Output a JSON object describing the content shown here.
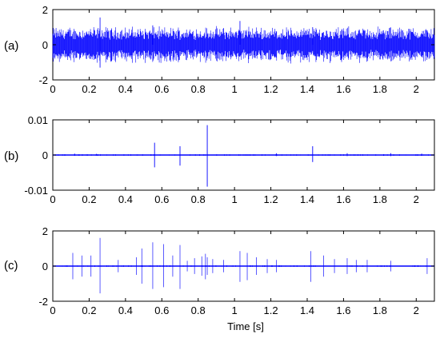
{
  "chart_data": [
    {
      "type": "line",
      "panel_label": "(a)",
      "xlim": [
        0,
        2.1
      ],
      "ylim": [
        -2,
        2
      ],
      "x_ticks": [
        0,
        0.2,
        0.4,
        0.6,
        0.8,
        1,
        1.2,
        1.4,
        1.6,
        1.8,
        2
      ],
      "x_tick_labels": [
        "0",
        "0.2",
        "0.4",
        "0.6",
        "0.8",
        "1",
        "1.2",
        "1.4",
        "1.6",
        "1.8",
        "2"
      ],
      "y_ticks": [
        -2,
        0,
        2
      ],
      "y_tick_labels": [
        "-2",
        "0",
        "2"
      ],
      "series_color": "#0000ff",
      "signal": "dense vibration signal, envelope about ±1, occasional peaks",
      "peaks": [
        [
          0.26,
          1.55
        ],
        [
          0.26,
          -1.3
        ],
        [
          0.55,
          1.1
        ],
        [
          1.03,
          1.35
        ],
        [
          1.43,
          1.0
        ]
      ]
    },
    {
      "type": "line",
      "panel_label": "(b)",
      "xlim": [
        0,
        2.1
      ],
      "ylim": [
        -0.01,
        0.01
      ],
      "x_ticks": [
        0,
        0.2,
        0.4,
        0.6,
        0.8,
        1,
        1.2,
        1.4,
        1.6,
        1.8,
        2
      ],
      "x_tick_labels": [
        "0",
        "0.2",
        "0.4",
        "0.6",
        "0.8",
        "1",
        "1.2",
        "1.4",
        "1.6",
        "1.8",
        "2"
      ],
      "y_ticks": [
        -0.01,
        0,
        0.01
      ],
      "y_tick_labels": [
        "-0.01",
        "0",
        "0.01"
      ],
      "series_color": "#0000ff",
      "signal": "near-zero baseline with sparse impulses",
      "impulses": [
        [
          0.12,
          0.0004
        ],
        [
          0.24,
          0.0003
        ],
        [
          0.56,
          0.0035
        ],
        [
          0.7,
          0.0025
        ],
        [
          0.85,
          0.0085
        ],
        [
          1.23,
          0.0005
        ],
        [
          1.43,
          0.0025
        ],
        [
          1.62,
          0.0005
        ],
        [
          1.86,
          0.0005
        ],
        [
          2.03,
          0.0004
        ]
      ],
      "impulse_min": [
        [
          0.56,
          -0.0035
        ],
        [
          0.7,
          -0.003
        ],
        [
          0.85,
          -0.009
        ],
        [
          1.43,
          -0.002
        ]
      ]
    },
    {
      "type": "line",
      "panel_label": "(c)",
      "xlim": [
        0,
        2.1
      ],
      "ylim": [
        -2,
        2
      ],
      "x_ticks": [
        0,
        0.2,
        0.4,
        0.6,
        0.8,
        1,
        1.2,
        1.4,
        1.6,
        1.8,
        2
      ],
      "x_tick_labels": [
        "0",
        "0.2",
        "0.4",
        "0.6",
        "0.8",
        "1",
        "1.2",
        "1.4",
        "1.6",
        "1.8",
        "2"
      ],
      "y_ticks": [
        -2,
        0,
        2
      ],
      "y_tick_labels": [
        "-2",
        "0",
        "2"
      ],
      "xlabel": "Time [s]",
      "series_color": "#0000ff",
      "signal": "near-zero baseline with many impulses",
      "impulses": [
        [
          0.11,
          0.75,
          -0.75
        ],
        [
          0.16,
          0.6,
          -0.6
        ],
        [
          0.21,
          0.6,
          -0.6
        ],
        [
          0.26,
          1.6,
          -1.55
        ],
        [
          0.36,
          0.35,
          -0.35
        ],
        [
          0.46,
          0.5,
          -0.5
        ],
        [
          0.49,
          1.0,
          -1.0
        ],
        [
          0.55,
          1.35,
          -1.3
        ],
        [
          0.61,
          1.25,
          -1.2
        ],
        [
          0.66,
          0.6,
          -0.6
        ],
        [
          0.7,
          1.2,
          -1.3
        ],
        [
          0.74,
          0.3,
          -0.3
        ],
        [
          0.78,
          0.45,
          -0.45
        ],
        [
          0.82,
          0.55,
          -0.55
        ],
        [
          0.84,
          0.7,
          -0.75
        ],
        [
          0.85,
          0.5,
          -0.5
        ],
        [
          0.88,
          0.4,
          -0.4
        ],
        [
          0.94,
          0.35,
          -0.35
        ],
        [
          1.03,
          0.85,
          -0.9
        ],
        [
          1.07,
          0.75,
          -0.8
        ],
        [
          1.12,
          0.5,
          -0.5
        ],
        [
          1.18,
          0.4,
          -0.4
        ],
        [
          1.23,
          0.35,
          -0.35
        ],
        [
          1.42,
          0.85,
          -0.9
        ],
        [
          1.49,
          0.6,
          -0.6
        ],
        [
          1.55,
          0.4,
          -0.4
        ],
        [
          1.62,
          0.45,
          -0.45
        ],
        [
          1.67,
          0.35,
          -0.35
        ],
        [
          1.73,
          0.35,
          -0.35
        ],
        [
          1.86,
          0.3,
          -0.3
        ],
        [
          2.06,
          0.45,
          -0.45
        ]
      ]
    }
  ]
}
